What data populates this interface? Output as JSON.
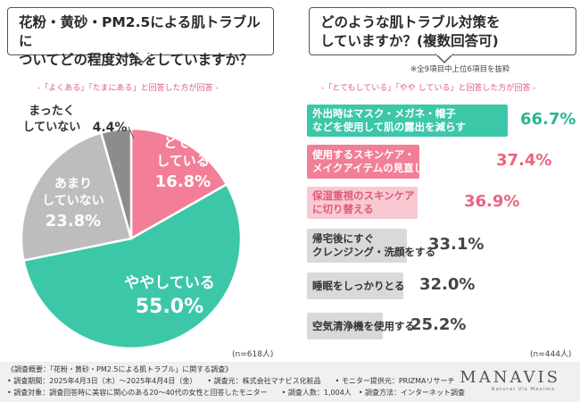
{
  "left": {
    "question_line1": "花粉・黄砂・PM2.5による肌トラブルに",
    "question_line2": "ついてどの程度対策をしていますか？",
    "subtitle": "-「よくある」「たまにある」と回答した方が回答 -",
    "n": "(n=618人)"
  },
  "right": {
    "question_line1": "どのような肌トラブル対策を",
    "question_line2": "していますか？(複数回答可)",
    "note": "※全9項目中上位6項目を抜粋",
    "subtitle": "-「とてもしている」「やや している」と回答した方が回答 -",
    "n": "(n=444人)"
  },
  "chart_data": [
    {
      "type": "pie",
      "title": "花粉・黄砂・PM2.5による肌トラブルについてどの程度対策をしていますか？",
      "slices": [
        {
          "label_line1": "とても",
          "label_line2": "している",
          "value": 16.8,
          "value_text": "16.8%",
          "color": "#f27f97"
        },
        {
          "label_line1": "ややしている",
          "label_line2": "",
          "value": 55.0,
          "value_text": "55.0%",
          "color": "#3dc7a9"
        },
        {
          "label_line1": "あまり",
          "label_line2": "していない",
          "value": 23.8,
          "value_text": "23.8%",
          "color": "#bdbdbd"
        },
        {
          "label_line1": "まったく",
          "label_line2": "していない",
          "value": 4.4,
          "value_text": "4.4%",
          "color": "#8c8c8c"
        }
      ]
    },
    {
      "type": "bar",
      "title": "どのような肌トラブル対策をしていますか？(複数回答可)",
      "categories": [
        [
          "外出時はマスク・メガネ・帽子",
          "などを使用して肌の露出を減らす"
        ],
        [
          "使用するスキンケア・",
          "メイクアイテムの見直し・変更"
        ],
        [
          "保湿重視のスキンケア",
          "に切り替える"
        ],
        [
          "帰宅後にすぐ",
          "クレンジング・洗顔をする"
        ],
        [
          "睡眠をしっかりとる"
        ],
        [
          "空気清浄機を使用する"
        ]
      ],
      "values": [
        66.7,
        37.4,
        36.9,
        33.1,
        32.0,
        25.2
      ],
      "value_texts": [
        "66.7%",
        "37.4%",
        "36.9%",
        "33.1%",
        "32.0%",
        "25.2%"
      ],
      "colors": [
        "#3dc7a9",
        "#f27f97",
        "#f7c9d3",
        "#d9d9d9",
        "#d9d9d9",
        "#d9d9d9"
      ],
      "text_colors": [
        "#ffffff",
        "#ffffff",
        "#e05b78",
        "#333333",
        "#333333",
        "#333333"
      ],
      "pct_colors": [
        "#2bb592",
        "#e8657f",
        "#e8657f",
        "#444444",
        "#444444",
        "#444444"
      ]
    }
  ],
  "footer": {
    "line1": "《調査概要：「花粉・黄砂・PM2.5による肌トラブル」に関する調査》",
    "line2": "• 調査期間：2025年4月3日（木）～2025年4月4日（金）　　• 調査元：株式会社マナビス化粧品　　• モニター提供元：PRIZMAリサーチ",
    "line3": "• 調査対象：調査回答時に美容に関心のある20～40代の女性と回答したモニター　　• 調査人数：1,004人　• 調査方法：インターネット調査",
    "logo": "MANAVIS",
    "logo_sub": "Natural Vis Maxima"
  }
}
